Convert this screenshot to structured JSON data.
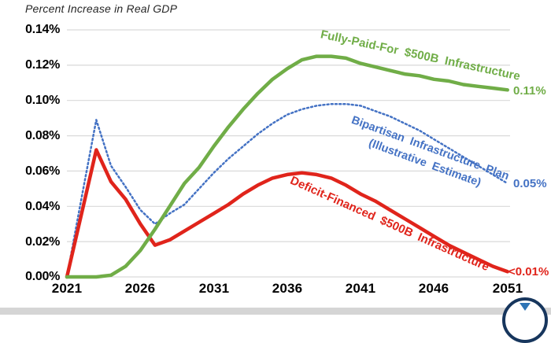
{
  "title": "Percent Increase in Real GDP",
  "colors": {
    "green": "#70AD47",
    "red": "#E0241B",
    "blue": "#4472C4",
    "gridline": "#D9D9D9",
    "axis_text": "#000000",
    "title_text": "#262626",
    "footer_strip": "#D5D5D5",
    "logo_ring": "#17365D"
  },
  "chart_data": {
    "type": "line",
    "title": "Percent Increase in Real GDP",
    "xlabel": "",
    "ylabel": "Percent Increase in Real GDP",
    "x_range": [
      2021,
      2051
    ],
    "x_step": 1,
    "x_ticks": [
      2021,
      2026,
      2031,
      2036,
      2041,
      2046,
      2051
    ],
    "x_tick_labels": [
      "2021",
      "2026",
      "2031",
      "2036",
      "2041",
      "2046",
      "2051"
    ],
    "y_tick_values": [
      0.14,
      0.12,
      0.1,
      0.08,
      0.06,
      0.04,
      0.02,
      0
    ],
    "y_tick_labels": [
      "0.14%",
      "0.12%",
      "0.10%",
      "0.08%",
      "0.06%",
      "0.04%",
      "0.02%",
      "0.00%"
    ],
    "ylim": [
      0,
      0.14
    ],
    "grid": "horizontal",
    "legend": "inline-rotated-curve-labels",
    "series": [
      {
        "name": "Bipartisan Infrastructure Plan (Illustrative Estimate)",
        "label_line1": "Bipartisan Infrastructure Plan",
        "label_line2": "(Illustrative Estimate)",
        "style": "dotted",
        "color": "#4472C4",
        "end_label": "0.05%",
        "values": [
          0,
          0.045,
          0.089,
          0.063,
          0.051,
          0.038,
          0.03,
          0.036,
          0.041,
          0.05,
          0.059,
          0.067,
          0.074,
          0.081,
          0.087,
          0.092,
          0.095,
          0.097,
          0.098,
          0.098,
          0.097,
          0.094,
          0.091,
          0.087,
          0.083,
          0.078,
          0.073,
          0.068,
          0.063,
          0.058,
          0.053
        ]
      },
      {
        "name": "Deficit-Financed $500B Infrastructure",
        "label": "Deficit-Financed $500B Infrastructure",
        "style": "solid",
        "color": "#E0241B",
        "end_label": "<0.01%",
        "values": [
          0,
          0.036,
          0.072,
          0.054,
          0.044,
          0.03,
          0.018,
          0.021,
          0.026,
          0.031,
          0.036,
          0.041,
          0.047,
          0.052,
          0.056,
          0.058,
          0.059,
          0.058,
          0.056,
          0.052,
          0.047,
          0.043,
          0.038,
          0.033,
          0.028,
          0.023,
          0.018,
          0.014,
          0.01,
          0.006,
          0.003
        ]
      },
      {
        "name": "Fully-Paid-For $500B Infrastructure",
        "label": "Fully-Paid-For $500B Infrastructure",
        "style": "solid",
        "color": "#70AD47",
        "end_label": "0.11%",
        "values": [
          0,
          0,
          0,
          0.001,
          0.006,
          0.015,
          0.027,
          0.04,
          0.053,
          0.062,
          0.074,
          0.085,
          0.095,
          0.104,
          0.112,
          0.118,
          0.123,
          0.125,
          0.125,
          0.124,
          0.121,
          0.119,
          0.117,
          0.115,
          0.114,
          0.112,
          0.111,
          0.109,
          0.108,
          0.107,
          0.106
        ]
      }
    ]
  }
}
